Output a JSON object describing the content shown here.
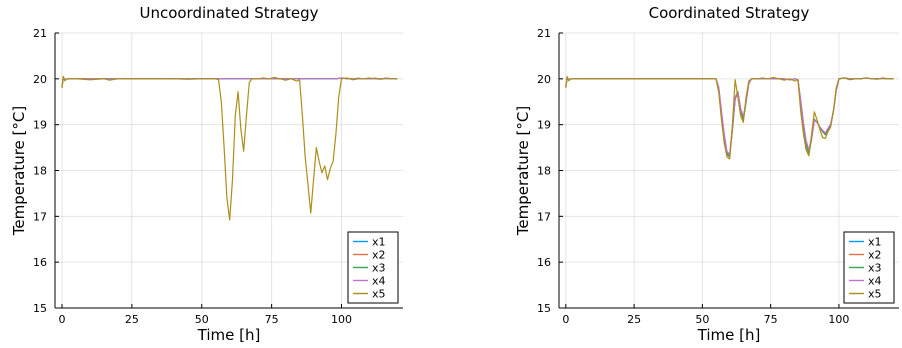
{
  "chart_data": [
    {
      "type": "line",
      "title": "Uncoordinated Strategy",
      "xlabel": "Time [h]",
      "ylabel": "Temperature [°C]",
      "xlim": [
        -2.5,
        122
      ],
      "ylim": [
        15,
        21
      ],
      "xticks": [
        0,
        25,
        50,
        75,
        100
      ],
      "yticks": [
        15,
        16,
        17,
        18,
        19,
        20,
        21
      ],
      "grid": true,
      "legend": "bottom-right",
      "series": [
        {
          "name": "x1",
          "color": "#009af9",
          "x": [
            0,
            0.5,
            1,
            2,
            10,
            30,
            50,
            54,
            56,
            58,
            60,
            62,
            64,
            66,
            68,
            70,
            72,
            74,
            76,
            78,
            80,
            82,
            84,
            86,
            88,
            90,
            92,
            94,
            96,
            98,
            100,
            102,
            104,
            106,
            108,
            110,
            112,
            114,
            116,
            118,
            120
          ],
          "y": [
            19.82,
            20.04,
            19.98,
            20.0,
            20.0,
            20.0,
            20.0,
            20.0,
            20.0,
            20.0,
            20.0,
            20.0,
            20.0,
            20.0,
            20.0,
            20.0,
            20.0,
            20.0,
            20.0,
            20.0,
            20.0,
            20.0,
            20.0,
            20.0,
            20.0,
            20.0,
            20.0,
            20.0,
            20.0,
            20.0,
            20.02,
            20.0,
            20.0,
            20.01,
            20.0,
            20.0,
            20.01,
            20.0,
            20.01,
            20.0,
            20.0
          ]
        },
        {
          "name": "x2",
          "color": "#e26f46",
          "x": [
            0,
            0.5,
            1,
            2,
            10,
            30,
            50,
            54,
            56,
            58,
            60,
            62,
            64,
            66,
            68,
            70,
            72,
            74,
            76,
            78,
            80,
            82,
            84,
            86,
            88,
            90,
            92,
            94,
            96,
            98,
            100,
            102,
            104,
            106,
            108,
            110,
            112,
            114,
            116,
            118,
            120
          ],
          "y": [
            19.82,
            20.04,
            19.98,
            20.0,
            20.0,
            20.0,
            20.0,
            20.0,
            20.0,
            20.0,
            20.0,
            20.0,
            20.0,
            20.0,
            20.0,
            20.0,
            20.0,
            20.0,
            20.0,
            20.0,
            20.0,
            20.0,
            20.0,
            20.0,
            20.0,
            20.0,
            20.0,
            20.0,
            20.0,
            20.0,
            20.02,
            20.0,
            20.0,
            20.01,
            20.0,
            20.0,
            20.01,
            20.0,
            20.01,
            20.0,
            20.0
          ]
        },
        {
          "name": "x3",
          "color": "#3da44d",
          "x": [
            0,
            0.5,
            1,
            2,
            10,
            30,
            50,
            54,
            56,
            58,
            60,
            62,
            64,
            66,
            68,
            70,
            72,
            74,
            76,
            78,
            80,
            82,
            84,
            86,
            88,
            90,
            92,
            94,
            96,
            98,
            100,
            102,
            104,
            106,
            108,
            110,
            112,
            114,
            116,
            118,
            120
          ],
          "y": [
            19.82,
            20.04,
            19.98,
            20.0,
            20.0,
            20.0,
            20.0,
            20.0,
            20.0,
            20.0,
            20.0,
            20.0,
            20.0,
            20.0,
            20.0,
            20.0,
            20.0,
            20.0,
            20.0,
            20.0,
            20.0,
            20.0,
            20.0,
            20.0,
            20.0,
            20.0,
            20.0,
            20.0,
            20.0,
            20.0,
            20.02,
            20.0,
            20.0,
            20.01,
            20.0,
            20.0,
            20.01,
            20.0,
            20.01,
            20.0,
            20.0
          ]
        },
        {
          "name": "x4",
          "color": "#c271d2",
          "x": [
            0,
            0.5,
            1,
            2,
            10,
            30,
            50,
            54,
            56,
            58,
            60,
            62,
            64,
            66,
            68,
            70,
            72,
            74,
            76,
            78,
            80,
            82,
            84,
            86,
            88,
            90,
            92,
            94,
            96,
            98,
            100,
            102,
            104,
            106,
            108,
            110,
            112,
            114,
            116,
            118,
            120
          ],
          "y": [
            19.82,
            20.04,
            19.98,
            20.0,
            20.0,
            20.0,
            20.0,
            20.0,
            20.0,
            20.0,
            20.0,
            20.0,
            20.0,
            20.0,
            20.0,
            20.0,
            20.0,
            20.0,
            20.0,
            20.0,
            20.0,
            20.0,
            20.0,
            20.0,
            20.0,
            20.0,
            20.0,
            20.0,
            20.0,
            20.0,
            20.02,
            20.0,
            20.0,
            20.01,
            20.0,
            20.0,
            20.01,
            20.0,
            20.01,
            20.0,
            20.0
          ]
        },
        {
          "name": "x5",
          "color": "#ac8d18",
          "x": [
            0,
            0.5,
            1,
            2,
            5,
            10,
            15,
            17,
            20,
            30,
            40,
            45,
            50,
            54,
            55,
            56,
            57,
            58,
            59,
            60,
            61,
            62,
            63,
            64,
            65,
            66,
            67,
            68,
            70,
            72,
            74,
            76,
            78,
            80,
            82,
            84,
            85,
            86,
            87,
            88,
            89,
            90,
            91,
            92,
            93,
            94,
            95,
            96,
            97,
            98,
            99,
            100,
            102,
            104,
            106,
            108,
            110,
            112,
            114,
            116,
            118,
            120
          ],
          "y": [
            19.8,
            20.05,
            19.96,
            20.0,
            20.0,
            19.98,
            20.0,
            19.97,
            20.0,
            20.0,
            20.0,
            19.99,
            20.0,
            20.0,
            20.0,
            19.98,
            19.5,
            18.5,
            17.4,
            16.92,
            17.8,
            19.2,
            19.72,
            18.9,
            18.42,
            19.2,
            19.92,
            20.0,
            20.0,
            20.02,
            20.0,
            20.03,
            20.0,
            19.97,
            20.0,
            19.95,
            19.98,
            19.2,
            18.3,
            17.7,
            17.07,
            17.8,
            18.5,
            18.2,
            17.95,
            18.1,
            17.8,
            18.05,
            18.2,
            18.8,
            19.6,
            20.0,
            20.02,
            19.98,
            20.0,
            20.0,
            20.02,
            20.0,
            19.99,
            20.02,
            20.0,
            20.0
          ]
        }
      ]
    },
    {
      "type": "line",
      "title": "Coordinated Strategy",
      "xlabel": "Time [h]",
      "ylabel": "Temperature [°C]",
      "xlim": [
        -2.5,
        122
      ],
      "ylim": [
        15,
        21
      ],
      "xticks": [
        0,
        25,
        50,
        75,
        100
      ],
      "yticks": [
        15,
        16,
        17,
        18,
        19,
        20,
        21
      ],
      "grid": true,
      "legend": "bottom-right",
      "series": [
        {
          "name": "x1",
          "color": "#009af9",
          "x": [
            0,
            0.5,
            1,
            2,
            10,
            30,
            50,
            54,
            55,
            56,
            57,
            58,
            59,
            60,
            61,
            62,
            63,
            64,
            65,
            66,
            67,
            68,
            70,
            72,
            74,
            76,
            78,
            80,
            82,
            84,
            85,
            86,
            87,
            88,
            89,
            90,
            91,
            92,
            93,
            94,
            95,
            96,
            97,
            98,
            99,
            100,
            102,
            104,
            106,
            108,
            110,
            112,
            114,
            116,
            118,
            120
          ],
          "y": [
            19.82,
            20.04,
            19.98,
            20.0,
            20.0,
            20.0,
            20.0,
            20.0,
            20.0,
            19.8,
            19.25,
            18.75,
            18.38,
            18.32,
            18.9,
            19.55,
            19.7,
            19.35,
            19.15,
            19.5,
            19.9,
            20.0,
            20.0,
            20.0,
            20.0,
            20.0,
            20.0,
            20.0,
            19.98,
            20.0,
            19.98,
            19.5,
            19.0,
            18.6,
            18.4,
            18.7,
            19.1,
            19.05,
            18.95,
            18.85,
            18.8,
            18.9,
            19.0,
            19.3,
            19.75,
            20.0,
            20.02,
            20.0,
            20.0,
            20.0,
            20.02,
            20.0,
            20.0,
            20.01,
            20.0,
            20.0
          ]
        },
        {
          "name": "x2",
          "color": "#e26f46",
          "x": [
            0,
            0.5,
            1,
            2,
            10,
            30,
            50,
            54,
            55,
            56,
            57,
            58,
            59,
            60,
            61,
            62,
            63,
            64,
            65,
            66,
            67,
            68,
            70,
            72,
            74,
            76,
            78,
            80,
            82,
            84,
            85,
            86,
            87,
            88,
            89,
            90,
            91,
            92,
            93,
            94,
            95,
            96,
            97,
            98,
            99,
            100,
            102,
            104,
            106,
            108,
            110,
            112,
            114,
            116,
            118,
            120
          ],
          "y": [
            19.82,
            20.04,
            19.98,
            20.0,
            20.0,
            20.0,
            20.0,
            20.0,
            20.0,
            19.78,
            19.2,
            18.7,
            18.35,
            18.3,
            18.88,
            19.55,
            19.72,
            19.35,
            19.12,
            19.5,
            19.9,
            20.0,
            20.0,
            20.0,
            20.0,
            20.0,
            20.0,
            20.0,
            19.98,
            20.0,
            19.98,
            19.45,
            18.95,
            18.55,
            18.38,
            18.68,
            19.1,
            19.05,
            18.95,
            18.85,
            18.78,
            18.88,
            19.0,
            19.3,
            19.75,
            20.0,
            20.02,
            20.0,
            20.0,
            20.0,
            20.02,
            20.0,
            20.0,
            20.01,
            20.0,
            20.0
          ]
        },
        {
          "name": "x3",
          "color": "#3da44d",
          "x": [
            0,
            0.5,
            1,
            2,
            10,
            30,
            50,
            54,
            55,
            56,
            57,
            58,
            59,
            60,
            61,
            62,
            63,
            64,
            65,
            66,
            67,
            68,
            70,
            72,
            74,
            76,
            78,
            80,
            82,
            84,
            85,
            86,
            87,
            88,
            89,
            90,
            91,
            92,
            93,
            94,
            95,
            96,
            97,
            98,
            99,
            100,
            102,
            104,
            106,
            108,
            110,
            112,
            114,
            116,
            118,
            120
          ],
          "y": [
            19.82,
            20.04,
            19.98,
            20.0,
            20.0,
            20.0,
            20.0,
            20.0,
            20.0,
            19.8,
            19.22,
            18.72,
            18.36,
            18.3,
            18.9,
            19.6,
            19.72,
            19.3,
            19.1,
            19.5,
            19.9,
            20.0,
            20.0,
            20.0,
            20.0,
            20.0,
            20.0,
            20.0,
            19.98,
            20.0,
            19.98,
            19.45,
            18.95,
            18.55,
            18.36,
            18.7,
            19.12,
            19.05,
            18.95,
            18.85,
            18.78,
            18.88,
            19.0,
            19.3,
            19.75,
            20.0,
            20.02,
            20.0,
            20.0,
            20.0,
            20.02,
            20.0,
            20.0,
            20.01,
            20.0,
            20.0
          ]
        },
        {
          "name": "x4",
          "color": "#c271d2",
          "x": [
            0,
            0.5,
            1,
            2,
            10,
            30,
            50,
            54,
            55,
            56,
            57,
            58,
            59,
            60,
            61,
            62,
            63,
            64,
            65,
            66,
            67,
            68,
            70,
            72,
            74,
            76,
            78,
            80,
            82,
            84,
            85,
            86,
            87,
            88,
            89,
            90,
            91,
            92,
            93,
            94,
            95,
            96,
            97,
            98,
            99,
            100,
            102,
            104,
            106,
            108,
            110,
            112,
            114,
            116,
            118,
            120
          ],
          "y": [
            19.82,
            20.04,
            19.98,
            20.0,
            20.0,
            20.0,
            20.0,
            20.0,
            20.0,
            19.82,
            19.3,
            18.8,
            18.42,
            18.35,
            18.95,
            19.6,
            19.7,
            19.35,
            19.18,
            19.52,
            19.9,
            20.0,
            20.0,
            20.0,
            20.0,
            20.0,
            20.0,
            20.0,
            19.98,
            20.0,
            19.98,
            19.55,
            19.05,
            18.65,
            18.45,
            18.72,
            19.1,
            19.05,
            18.95,
            18.88,
            18.82,
            18.92,
            19.02,
            19.3,
            19.75,
            20.0,
            20.02,
            20.0,
            20.0,
            20.0,
            20.02,
            20.0,
            20.0,
            20.01,
            20.0,
            20.0
          ]
        },
        {
          "name": "x5",
          "color": "#ac8d18",
          "x": [
            0,
            0.5,
            1,
            2,
            10,
            30,
            50,
            54,
            55,
            56,
            57,
            58,
            59,
            60,
            61,
            62,
            63,
            64,
            65,
            66,
            67,
            68,
            70,
            72,
            74,
            76,
            78,
            80,
            82,
            84,
            85,
            86,
            87,
            88,
            89,
            90,
            91,
            92,
            93,
            94,
            95,
            96,
            97,
            98,
            99,
            100,
            102,
            104,
            106,
            108,
            110,
            112,
            114,
            116,
            118,
            120
          ],
          "y": [
            19.8,
            20.05,
            19.96,
            20.0,
            20.0,
            20.0,
            20.0,
            20.0,
            20.0,
            19.7,
            19.1,
            18.6,
            18.3,
            18.25,
            19.0,
            19.98,
            19.6,
            19.2,
            19.05,
            19.6,
            19.95,
            20.0,
            20.0,
            20.02,
            20.0,
            20.03,
            20.0,
            19.97,
            20.0,
            19.95,
            19.98,
            19.3,
            18.8,
            18.45,
            18.32,
            18.8,
            19.28,
            19.1,
            18.9,
            18.72,
            18.7,
            18.85,
            18.95,
            19.3,
            19.8,
            20.0,
            20.02,
            19.98,
            20.0,
            20.0,
            20.02,
            20.0,
            19.99,
            20.02,
            20.0,
            20.0
          ]
        }
      ]
    }
  ]
}
